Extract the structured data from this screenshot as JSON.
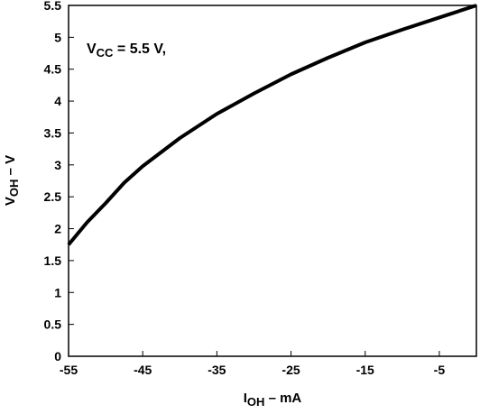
{
  "chart_data": {
    "type": "line",
    "annotation": {
      "main": "V",
      "sub": "CC",
      "rest": " = 5.5 V,"
    },
    "xlabel": {
      "main": "I",
      "sub": "OH",
      "rest": " – mA"
    },
    "ylabel": {
      "main": "V",
      "sub": "OH",
      "rest": " – V"
    },
    "x": [
      -55,
      -52.5,
      -50,
      -47.5,
      -45,
      -40,
      -35,
      -30,
      -25,
      -20,
      -15,
      -10,
      -5,
      0
    ],
    "series": [
      {
        "color": "#000000",
        "values": [
          1.75,
          2.1,
          2.4,
          2.72,
          2.98,
          3.42,
          3.8,
          4.12,
          4.42,
          4.68,
          4.92,
          5.12,
          5.31,
          5.5
        ]
      }
    ],
    "xlim": [
      -55,
      0
    ],
    "xticks": [
      -55,
      -45,
      -35,
      -25,
      -15,
      -5
    ],
    "ylim": [
      0,
      5.5
    ],
    "yticks": [
      0,
      0.5,
      1,
      1.5,
      2,
      2.5,
      3,
      3.5,
      4,
      4.5,
      5,
      5.5
    ]
  }
}
